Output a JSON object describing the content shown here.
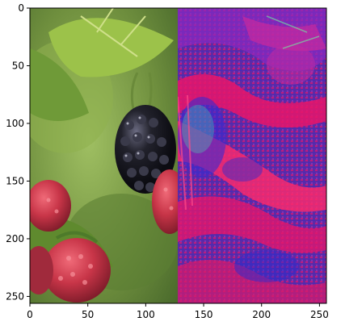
{
  "chart_data": {
    "type": "image",
    "title": "",
    "xlabel": "",
    "ylabel": "",
    "xlim": [
      0,
      256
    ],
    "ylim": [
      256,
      0
    ],
    "x_ticks": [
      0,
      50,
      100,
      150,
      200,
      250
    ],
    "y_ticks": [
      0,
      50,
      100,
      150,
      200,
      250
    ],
    "x_tick_labels": [
      "0",
      "50",
      "100",
      "150",
      "200",
      "250"
    ],
    "y_tick_labels": [
      "0",
      "50",
      "100",
      "150",
      "200",
      "250"
    ],
    "panels": [
      {
        "name": "photo",
        "x_range": [
          0,
          128
        ],
        "content": "blackberry and raspberry photograph"
      },
      {
        "name": "false-color",
        "x_range": [
          128,
          256
        ],
        "content": "false-color transformed image"
      }
    ],
    "colors": {
      "photo_green": "#7fa04a",
      "photo_dark_green": "#3d5a22",
      "berry_black": "#1a1a22",
      "raspberry_red": "#c23a48",
      "false_purple": "#6a2aa8",
      "false_magenta": "#e8156a",
      "false_blue": "#2a2ad0",
      "false_pink": "#ff2a6a"
    },
    "grid": false
  }
}
